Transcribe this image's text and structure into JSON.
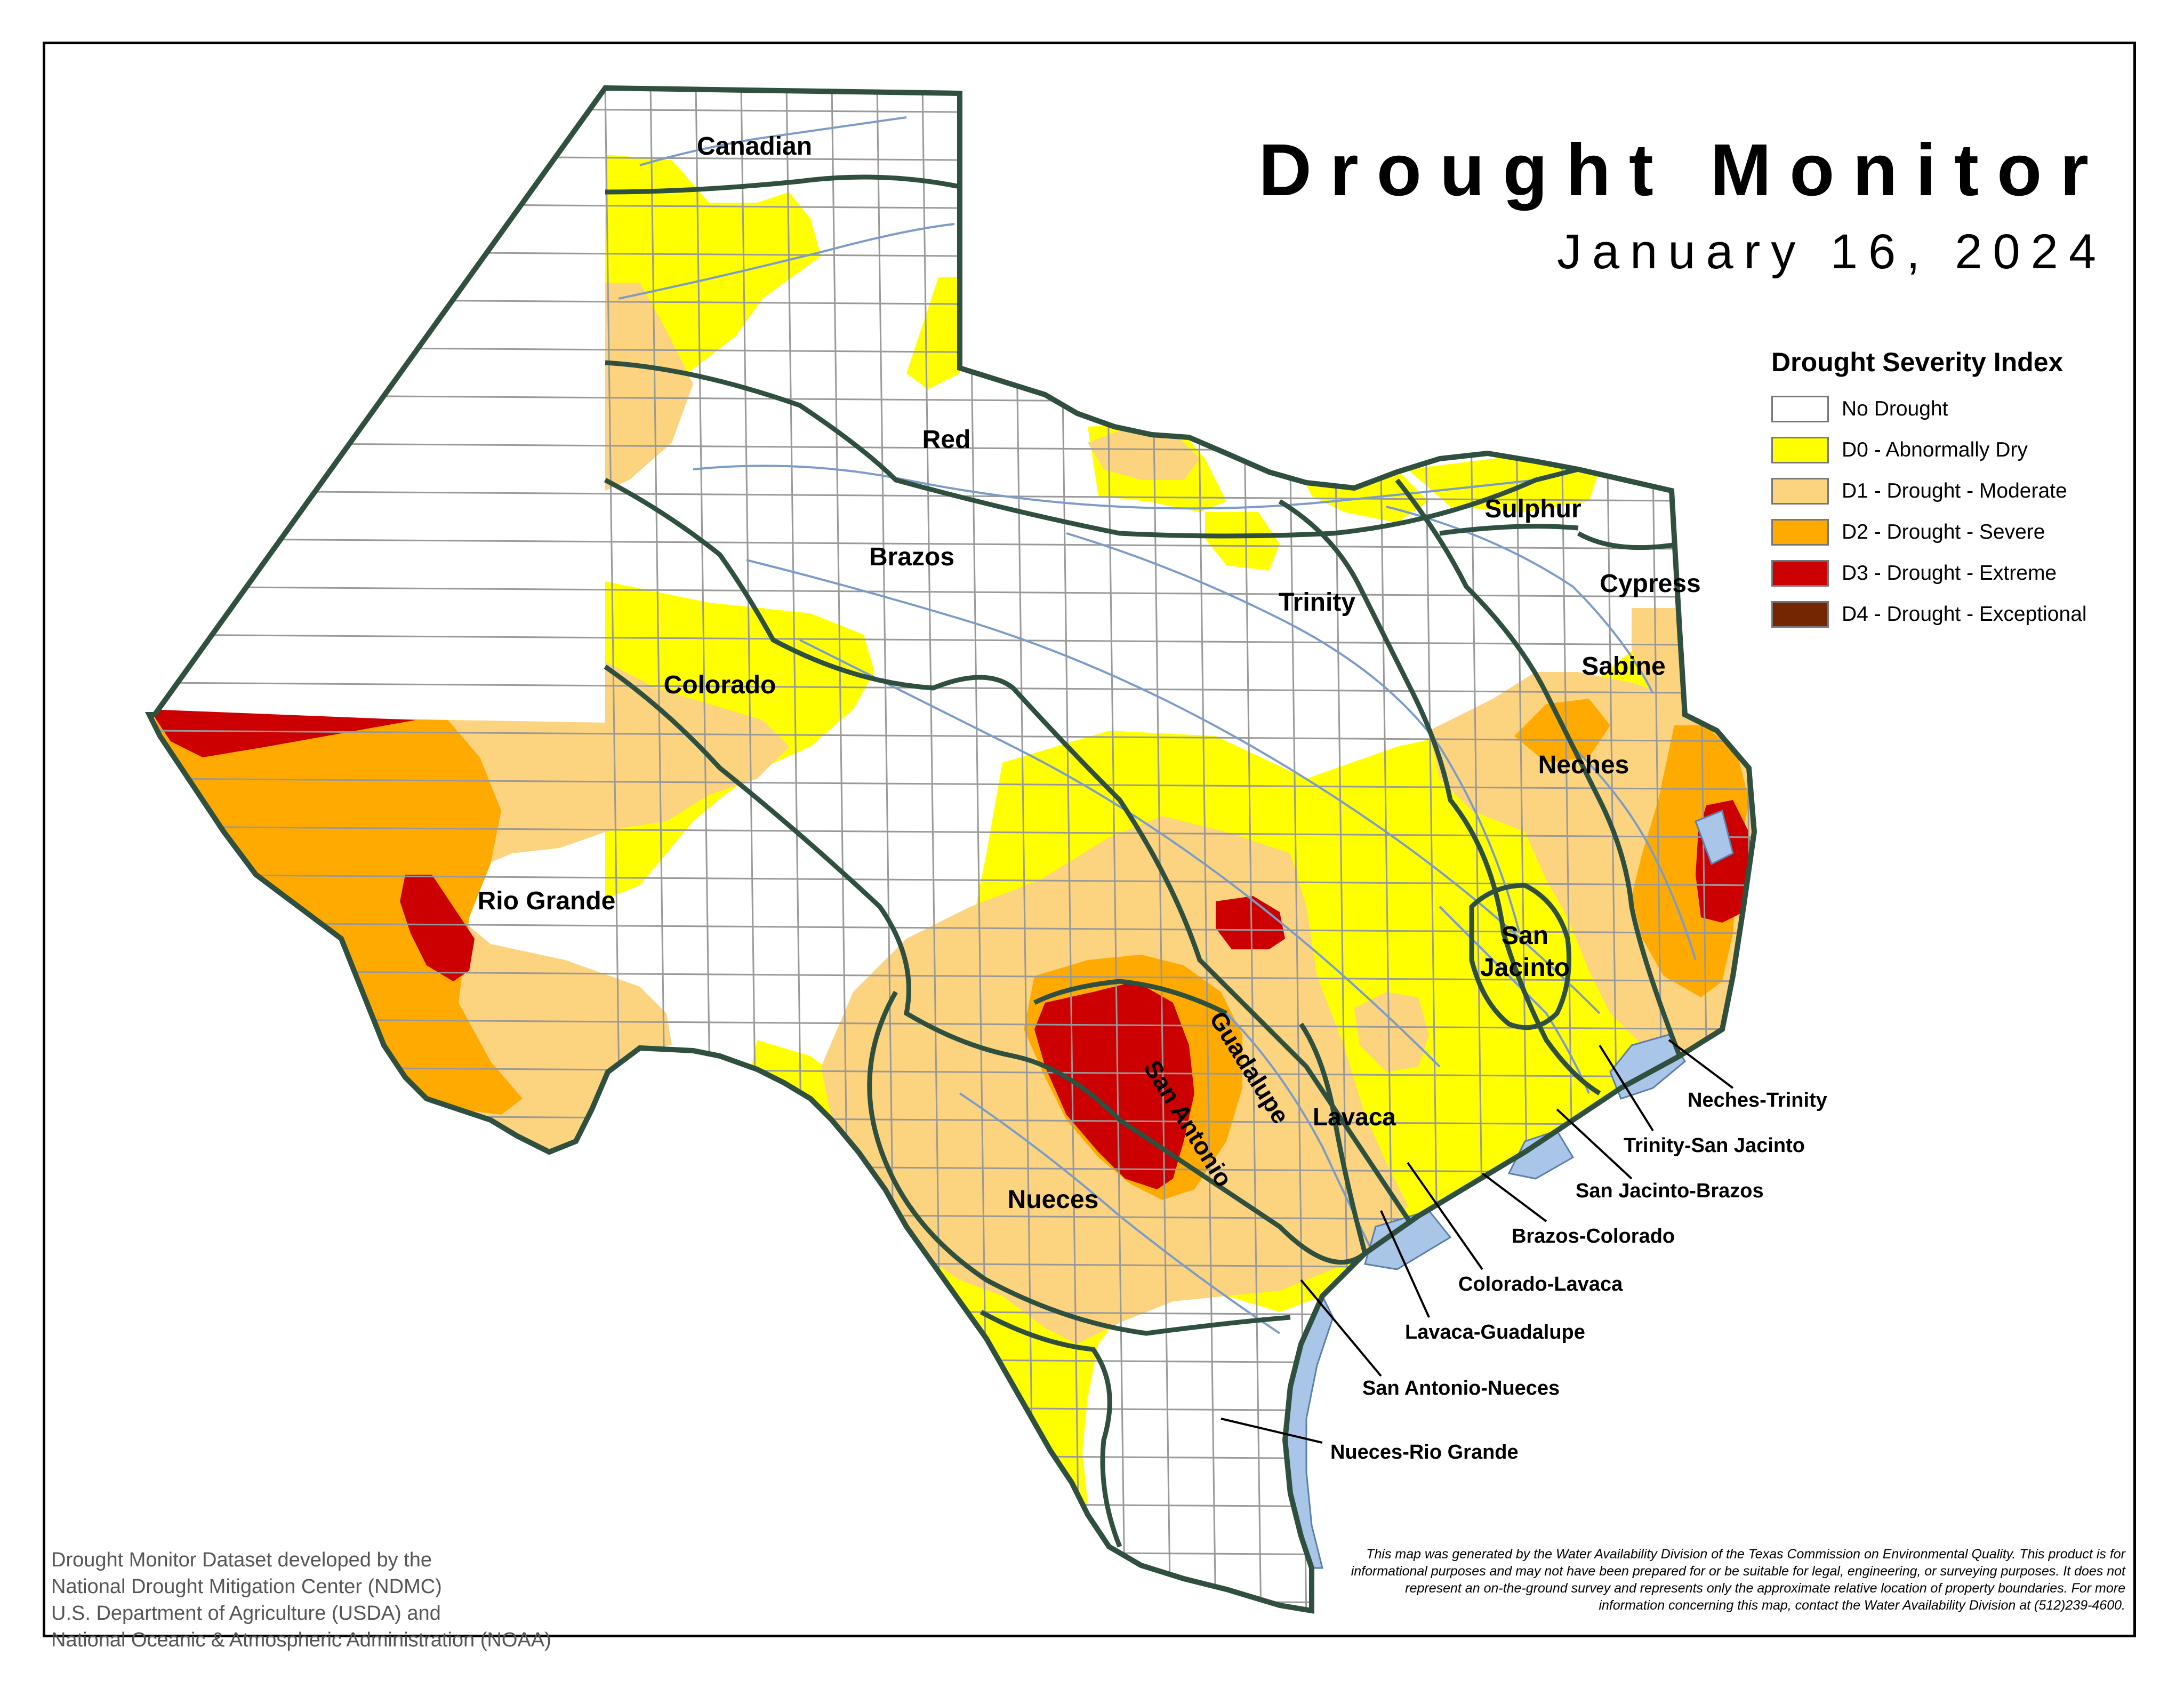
{
  "title": "Drought Monitor",
  "date": "January 16, 2024",
  "legend": {
    "title": "Drought Severity Index",
    "items": [
      {
        "label": "No Drought",
        "color": "#ffffff"
      },
      {
        "label": "D0 - Abnormally Dry",
        "color": "#ffff00"
      },
      {
        "label": "D1 - Drought - Moderate",
        "color": "#fcd37f"
      },
      {
        "label": "D2 - Drought - Severe",
        "color": "#ffaa00"
      },
      {
        "label": "D3 - Drought - Extreme",
        "color": "#cc0000"
      },
      {
        "label": "D4 - Drought - Exceptional",
        "color": "#732600"
      }
    ]
  },
  "basins": {
    "canadian": "Canadian",
    "red": "Red",
    "brazos": "Brazos",
    "colorado": "Colorado",
    "rio_grande": "Rio Grande",
    "trinity": "Trinity",
    "sulphur": "Sulphur",
    "cypress": "Cypress",
    "sabine": "Sabine",
    "neches": "Neches",
    "san_jacinto_1": "San",
    "san_jacinto_2": "Jacinto",
    "guadalupe": "Guadalupe",
    "san_antonio": "San Antonio",
    "lavaca": "Lavaca",
    "nueces": "Nueces"
  },
  "coastal_basins": {
    "neches_trinity": "Neches-Trinity",
    "trinity_san_jacinto": "Trinity-San Jacinto",
    "san_jacinto_brazos": "San Jacinto-Brazos",
    "brazos_colorado": "Brazos-Colorado",
    "colorado_lavaca": "Colorado-Lavaca",
    "lavaca_guadalupe": "Lavaca-Guadalupe",
    "san_antonio_nueces": "San Antonio-Nueces",
    "nueces_rio_grande": "Nueces-Rio Grande"
  },
  "credit": [
    "Drought Monitor Dataset developed by the",
    "National Drought Mitigation Center (NDMC)",
    "U.S. Department of Agriculture (USDA) and",
    "National Oceanic & Atmospheric Administration (NOAA)"
  ],
  "disclaimer": "This map was generated by the Water Availability Division of the Texas Commission on Environmental Quality. This product is for informational purposes and may not have been prepared for or be suitable for legal, engineering, or surveying purposes. It does not represent an on-the-ground survey and represents only the approximate relative location of property boundaries. For more information concerning this map, contact the Water Availability Division at (512)239-4600."
}
